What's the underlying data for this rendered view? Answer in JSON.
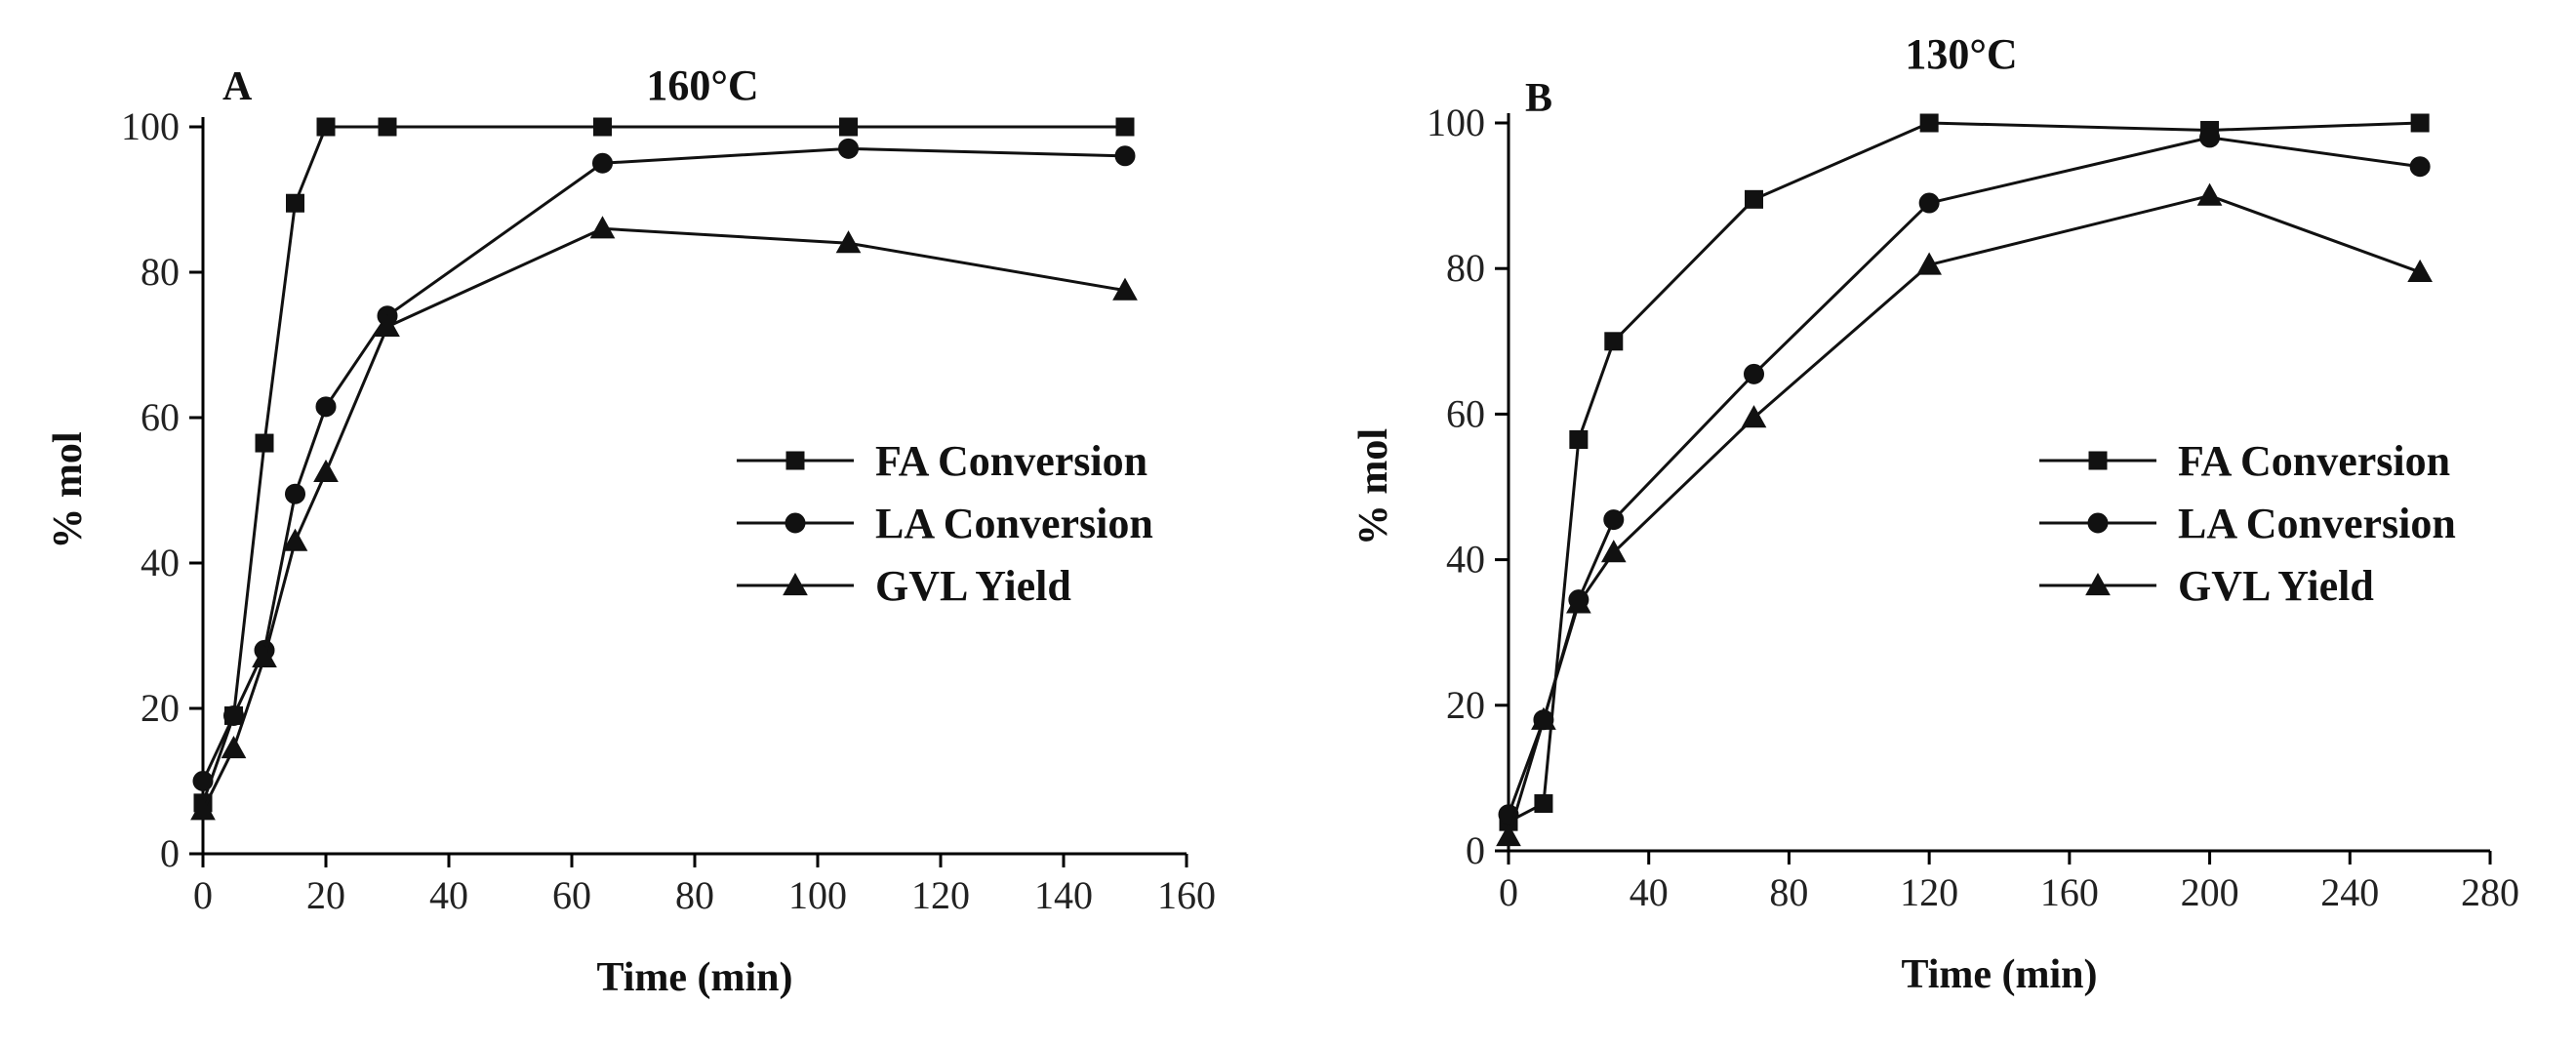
{
  "chart_data": [
    {
      "type": "line",
      "panel_label": "A",
      "title": "160°C",
      "xlabel": "Time (min)",
      "ylabel": "% mol",
      "xlim": [
        0,
        160
      ],
      "ylim": [
        0,
        100
      ],
      "xticks": [
        0,
        20,
        40,
        60,
        80,
        100,
        120,
        140,
        160
      ],
      "yticks": [
        0,
        20,
        40,
        60,
        80,
        100
      ],
      "legend_position": "center-right",
      "series": [
        {
          "name": "FA Conversion",
          "marker": "square",
          "x": [
            0,
            5,
            10,
            15,
            20,
            30,
            65,
            105,
            150
          ],
          "y": [
            7,
            19,
            56.5,
            89.5,
            100,
            100,
            100,
            100,
            100
          ]
        },
        {
          "name": "LA Conversion",
          "marker": "circle",
          "x": [
            0,
            5,
            10,
            15,
            20,
            30,
            65,
            105,
            150
          ],
          "y": [
            10,
            19,
            28,
            49.5,
            61.5,
            74,
            95,
            97,
            96
          ]
        },
        {
          "name": "GVL Yield",
          "marker": "triangle",
          "x": [
            0,
            5,
            10,
            15,
            20,
            30,
            65,
            105,
            150
          ],
          "y": [
            6,
            14.5,
            27,
            43,
            52.5,
            72.5,
            86,
            84,
            77.5
          ]
        }
      ]
    },
    {
      "type": "line",
      "panel_label": "B",
      "title": "130°C",
      "xlabel": "Time (min)",
      "ylabel": "% mol",
      "xlim": [
        0,
        280
      ],
      "ylim": [
        0,
        100
      ],
      "xticks": [
        0,
        40,
        80,
        120,
        160,
        200,
        240,
        280
      ],
      "yticks": [
        0,
        20,
        40,
        60,
        80,
        100
      ],
      "legend_position": "center-right",
      "series": [
        {
          "name": "FA Conversion",
          "marker": "square",
          "x": [
            0,
            10,
            20,
            30,
            70,
            120,
            200,
            260
          ],
          "y": [
            4,
            6.5,
            56.5,
            70,
            89.5,
            100,
            99,
            100
          ]
        },
        {
          "name": "LA Conversion",
          "marker": "circle",
          "x": [
            0,
            10,
            20,
            30,
            70,
            120,
            200,
            260
          ],
          "y": [
            5,
            18,
            34.5,
            45.5,
            65.5,
            89,
            98,
            94
          ]
        },
        {
          "name": "GVL Yield",
          "marker": "triangle",
          "x": [
            0,
            10,
            20,
            30,
            70,
            120,
            200,
            260
          ],
          "y": [
            2,
            18,
            34,
            41,
            59.5,
            80.5,
            90,
            79.5
          ]
        }
      ]
    }
  ]
}
